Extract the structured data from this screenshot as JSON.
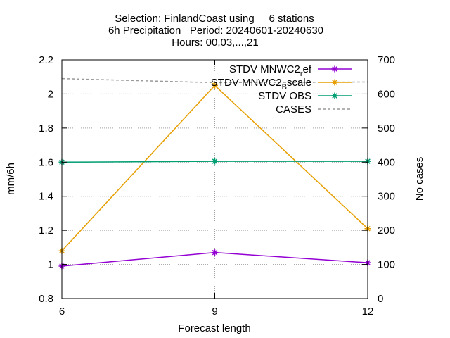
{
  "chart_data": {
    "type": "line",
    "title_lines": [
      "Selection: FinlandCoast using     6 stations",
      "6h Precipitation   Period: 20240601-20240630",
      "Hours: 00,03,...,21"
    ],
    "xlabel": "Forecast length",
    "ylabel": "mm/6h",
    "y2label": "No cases",
    "x": [
      6,
      9,
      12
    ],
    "xticks": [
      "6",
      "9",
      "12"
    ],
    "xlim": [
      6,
      12
    ],
    "ylim": [
      0.8,
      2.2
    ],
    "yticks": [
      "0.8",
      "1",
      "1.2",
      "1.4",
      "1.6",
      "1.8",
      "2",
      "2.2"
    ],
    "y2lim": [
      0,
      700
    ],
    "y2ticks": [
      "0",
      "100",
      "200",
      "300",
      "400",
      "500",
      "600",
      "700"
    ],
    "grid": true,
    "legend_position": "top-right",
    "series": [
      {
        "name": "STDV MNWC2_ref",
        "label_main": "STDV MNWC2",
        "label_sub": "r",
        "label_tail": "ef",
        "color": "#9400d3",
        "marker": "asterisk",
        "axis": "y",
        "values": [
          0.99,
          1.07,
          1.01
        ]
      },
      {
        "name": "STDV MNWC2_Bscale",
        "label_main": "STDV MNWC2",
        "label_sub": "B",
        "label_tail": "scale",
        "color": "#e69f00",
        "marker": "asterisk",
        "axis": "y",
        "values": [
          1.08,
          2.05,
          1.21
        ]
      },
      {
        "name": "STDV OBS",
        "label_main": "STDV OBS",
        "label_sub": "",
        "label_tail": "",
        "color": "#009e73",
        "marker": "asterisk",
        "axis": "y",
        "values": [
          1.6,
          1.605,
          1.605
        ]
      },
      {
        "name": "CASES",
        "label_main": "CASES",
        "label_sub": "",
        "label_tail": "",
        "color": "#999999",
        "marker": "none",
        "dashed": true,
        "axis": "y2",
        "values": [
          645,
          633,
          635
        ]
      }
    ]
  }
}
